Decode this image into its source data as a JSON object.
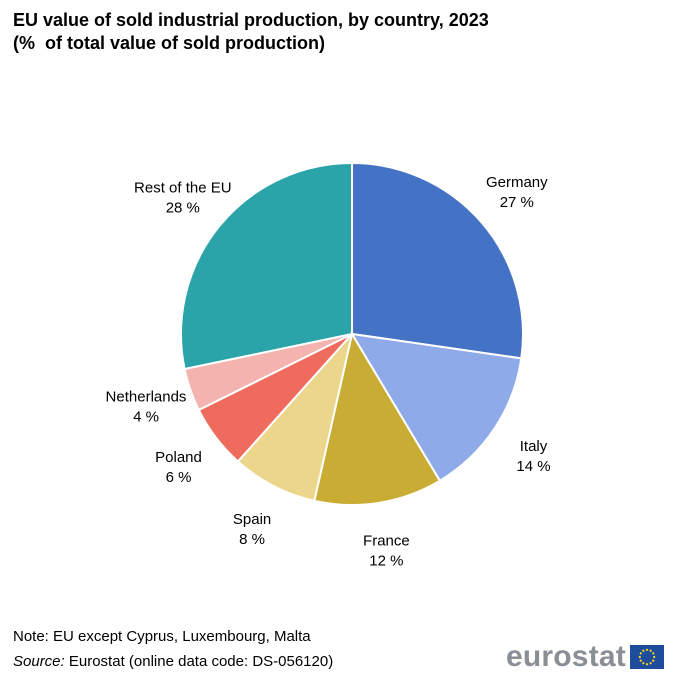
{
  "title": {
    "line1": "EU value of sold industrial production, by country, 2023",
    "line2": "(%  of total value of sold production)"
  },
  "chart_data": {
    "type": "pie",
    "title": "EU value of sold industrial production, by country, 2023",
    "subtitle": "(% of total value of sold production)",
    "unit": "%",
    "slices": [
      {
        "name": "Germany",
        "value": 27,
        "label": "27 %",
        "color": "#4472c4"
      },
      {
        "name": "Italy",
        "value": 14,
        "label": "14 %",
        "color": "#8eaae8"
      },
      {
        "name": "France",
        "value": 12,
        "label": "12 %",
        "color": "#c9ac34"
      },
      {
        "name": "Spain",
        "value": 8,
        "label": "8 %",
        "color": "#ecd68c"
      },
      {
        "name": "Poland",
        "value": 6,
        "label": "6 %",
        "color": "#ee6b5e"
      },
      {
        "name": "Netherlands",
        "value": 4,
        "label": "4 %",
        "color": "#f4b3ae"
      },
      {
        "name": "Rest of the EU",
        "value": 28,
        "label": "28 %",
        "color": "#2aa4a9"
      }
    ],
    "start_angle": "12 o'clock",
    "direction": "clockwise"
  },
  "footer": {
    "note": "Note: EU except Cyprus, Luxembourg, Malta",
    "source_label": "Source:",
    "source_text": " Eurostat (online data code: DS-056120)"
  },
  "logo": {
    "text": "eurostat",
    "text_color": "#8a8f96",
    "flag_blue": "#1f4d9e",
    "star_color": "#ffd617"
  }
}
